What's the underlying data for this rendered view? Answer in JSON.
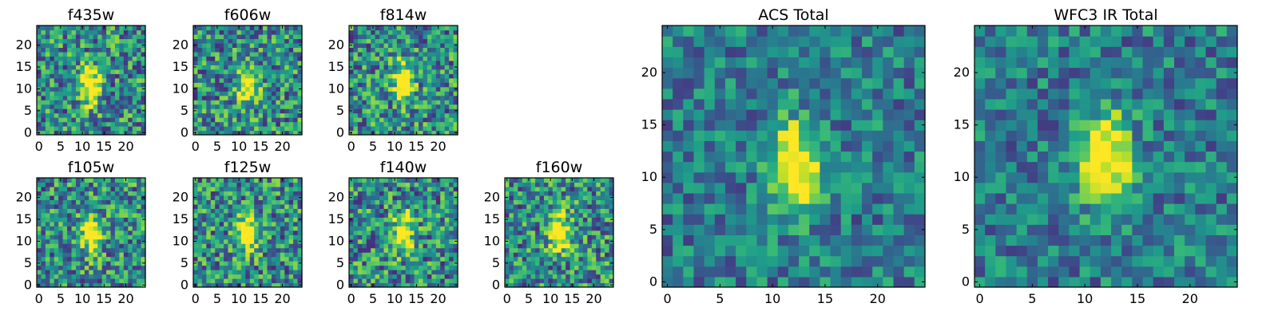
{
  "chart_data": [
    {
      "type": "heatmap",
      "title": "f435w",
      "image_size": [
        25,
        25
      ],
      "xticks": [
        0,
        5,
        10,
        15,
        20
      ],
      "yticks": [
        0,
        5,
        10,
        15,
        20
      ],
      "xlim": [
        -0.5,
        24.5
      ],
      "ylim": [
        -0.5,
        24.5
      ],
      "peak": [
        12,
        11
      ],
      "colormap": "viridis"
    },
    {
      "type": "heatmap",
      "title": "f606w",
      "image_size": [
        25,
        25
      ],
      "xticks": [
        0,
        5,
        10,
        15,
        20
      ],
      "yticks": [
        0,
        5,
        10,
        15,
        20
      ],
      "xlim": [
        -0.5,
        24.5
      ],
      "ylim": [
        -0.5,
        24.5
      ],
      "peak": [
        12,
        11
      ],
      "colormap": "viridis"
    },
    {
      "type": "heatmap",
      "title": "f814w",
      "image_size": [
        25,
        25
      ],
      "xticks": [
        0,
        5,
        10,
        15,
        20
      ],
      "yticks": [
        0,
        5,
        10,
        15,
        20
      ],
      "xlim": [
        -0.5,
        24.5
      ],
      "ylim": [
        -0.5,
        24.5
      ],
      "peak": [
        12,
        12
      ],
      "colormap": "viridis"
    },
    {
      "type": "heatmap",
      "title": "f105w",
      "image_size": [
        25,
        25
      ],
      "xticks": [
        0,
        5,
        10,
        15,
        20
      ],
      "yticks": [
        0,
        5,
        10,
        15,
        20
      ],
      "xlim": [
        -0.5,
        24.5
      ],
      "ylim": [
        -0.5,
        24.5
      ],
      "peak": [
        12,
        12
      ],
      "colormap": "viridis"
    },
    {
      "type": "heatmap",
      "title": "f125w",
      "image_size": [
        25,
        25
      ],
      "xticks": [
        0,
        5,
        10,
        15,
        20
      ],
      "yticks": [
        0,
        5,
        10,
        15,
        20
      ],
      "xlim": [
        -0.5,
        24.5
      ],
      "ylim": [
        -0.5,
        24.5
      ],
      "peak": [
        12,
        12
      ],
      "colormap": "viridis"
    },
    {
      "type": "heatmap",
      "title": "f140w",
      "image_size": [
        25,
        25
      ],
      "xticks": [
        0,
        5,
        10,
        15,
        20
      ],
      "yticks": [
        0,
        5,
        10,
        15,
        20
      ],
      "xlim": [
        -0.5,
        24.5
      ],
      "ylim": [
        -0.5,
        24.5
      ],
      "peak": [
        12,
        12
      ],
      "colormap": "viridis"
    },
    {
      "type": "heatmap",
      "title": "f160w",
      "image_size": [
        25,
        25
      ],
      "xticks": [
        0,
        5,
        10,
        15,
        20
      ],
      "yticks": [
        0,
        5,
        10,
        15,
        20
      ],
      "xlim": [
        -0.5,
        24.5
      ],
      "ylim": [
        -0.5,
        24.5
      ],
      "peak": [
        12,
        12
      ],
      "colormap": "viridis"
    },
    {
      "type": "heatmap",
      "title": "ACS Total",
      "image_size": [
        25,
        25
      ],
      "xticks": [
        0,
        5,
        10,
        15,
        20
      ],
      "yticks": [
        0,
        5,
        10,
        15,
        20
      ],
      "xlim": [
        -0.5,
        24.5
      ],
      "ylim": [
        -0.5,
        24.5
      ],
      "peak": [
        12,
        11
      ],
      "colormap": "viridis"
    },
    {
      "type": "heatmap",
      "title": "WFC3 IR Total",
      "image_size": [
        25,
        25
      ],
      "xticks": [
        0,
        5,
        10,
        15,
        20
      ],
      "yticks": [
        0,
        5,
        10,
        15,
        20
      ],
      "xlim": [
        -0.5,
        24.5
      ],
      "ylim": [
        -0.5,
        24.5
      ],
      "peak": [
        12,
        12
      ],
      "colormap": "viridis"
    }
  ]
}
